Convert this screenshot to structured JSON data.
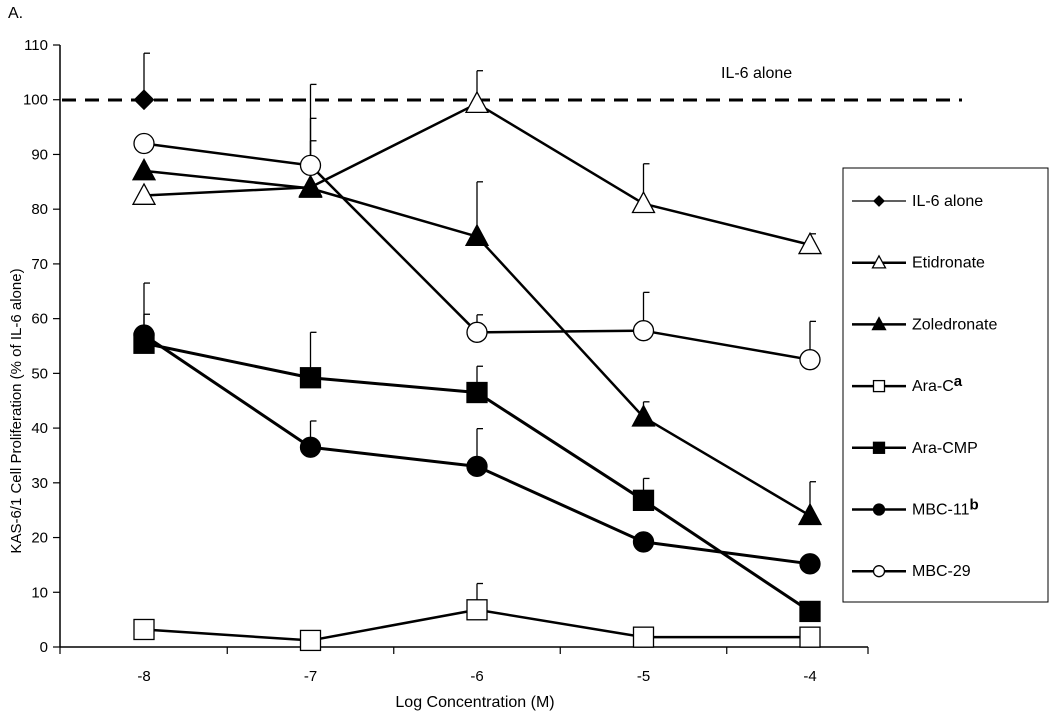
{
  "chart_data": {
    "type": "line",
    "panel_label": "A.",
    "xlabel": "Log Concentration (M)",
    "ylabel": "KAS-6/1 Cell Proliferation (% of IL-6 alone)",
    "x": [
      -8,
      -7,
      -6,
      -5,
      -4
    ],
    "xlim": [
      -8,
      -4
    ],
    "ylim": [
      0,
      110
    ],
    "yticks": [
      0,
      10,
      20,
      30,
      40,
      50,
      60,
      70,
      80,
      90,
      100,
      110
    ],
    "grid": false,
    "legend_position": "right",
    "reference_line": {
      "y": 100,
      "label": "IL-6 alone",
      "style": "dashed"
    },
    "series": [
      {
        "name": "IL-6 alone",
        "marker": "diamond-filled",
        "size": 11,
        "lw": 1.2,
        "values": [
          100,
          null,
          null,
          null,
          null
        ],
        "errors": [
          8.5,
          null,
          null,
          null,
          null
        ]
      },
      {
        "name": "Etidronate",
        "marker": "triangle-open",
        "size": 14,
        "lw": 2.5,
        "values": [
          82.5,
          84,
          99.3,
          81,
          73.5
        ],
        "errors": [
          0,
          8.5,
          6,
          7.3,
          2
        ]
      },
      {
        "name": "Zoledronate",
        "marker": "triangle-filled",
        "size": 14,
        "lw": 2.5,
        "values": [
          87,
          83.8,
          75,
          42,
          24
        ],
        "errors": [
          0,
          12.8,
          10,
          2.8,
          6.2
        ]
      },
      {
        "name": "Ara-C",
        "superscript": "a",
        "marker": "square-open",
        "size": 12,
        "lw": 2.5,
        "values": [
          3.2,
          1.2,
          6.8,
          1.8,
          1.8
        ],
        "errors": [
          1,
          0,
          4.8,
          1,
          0.8
        ]
      },
      {
        "name": "Ara-CMP",
        "marker": "square-filled",
        "size": 12,
        "lw": 3,
        "values": [
          55.5,
          49.2,
          46.5,
          26.8,
          6.5
        ],
        "errors": [
          11,
          8.3,
          4.8,
          4,
          0
        ]
      },
      {
        "name": "MBC-11",
        "superscript": "b",
        "marker": "circle-filled",
        "size": 12,
        "lw": 3,
        "values": [
          57,
          36.5,
          33,
          19.2,
          15.2
        ],
        "errors": [
          3.8,
          4.8,
          6.9,
          0,
          0
        ]
      },
      {
        "name": "MBC-29",
        "marker": "circle-open",
        "size": 12,
        "lw": 2.5,
        "values": [
          92,
          88,
          57.5,
          57.8,
          52.5
        ],
        "errors": [
          0,
          14.8,
          3.2,
          7,
          7
        ]
      }
    ]
  }
}
